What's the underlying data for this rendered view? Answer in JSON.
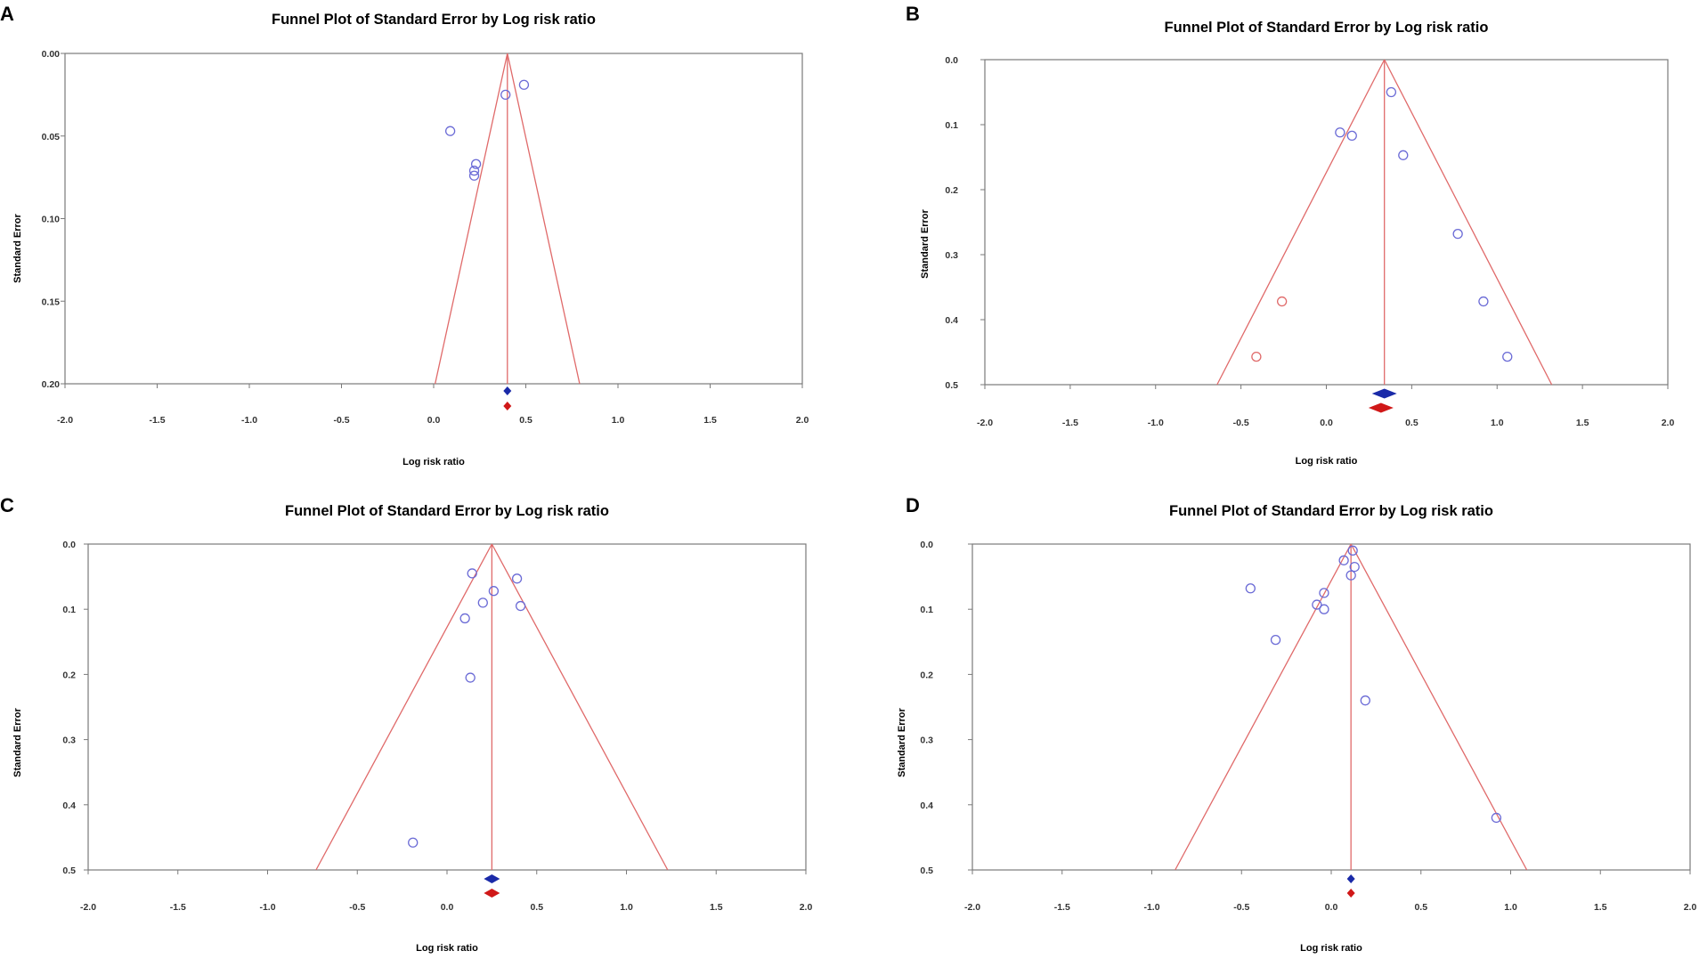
{
  "colors": {
    "funnel": "#e06a6a",
    "observed_point": "#6b6bd6",
    "imputed_point": "#e06a6a",
    "observed_diamond": "#1a2aa8",
    "imputed_diamond": "#d01818",
    "axis": "#7a7a7a"
  },
  "chart_data": [
    {
      "panel": "A",
      "type": "scatter",
      "title": "Funnel Plot of Standard Error by Log risk ratio",
      "xlabel": "Log risk ratio",
      "ylabel": "Standard Error",
      "xlim": [
        -2.0,
        2.0
      ],
      "ylim": [
        0.0,
        0.2
      ],
      "y_inverted": true,
      "xticks": [
        "-2.0",
        "-1.5",
        "-1.0",
        "-0.5",
        "0.0",
        "0.5",
        "1.0",
        "1.5",
        "2.0"
      ],
      "yticks": [
        "0.00",
        "0.05",
        "0.10",
        "0.15",
        "0.20"
      ],
      "ytick_values": [
        0.0,
        0.05,
        0.1,
        0.15,
        0.2
      ],
      "pooled_estimate": 0.4,
      "imputed_estimate": 0.4,
      "observed_points": [
        [
          0.49,
          0.019
        ],
        [
          0.39,
          0.025
        ],
        [
          0.09,
          0.047
        ],
        [
          0.23,
          0.067
        ],
        [
          0.22,
          0.071
        ],
        [
          0.22,
          0.074
        ]
      ],
      "imputed_points": []
    },
    {
      "panel": "B",
      "type": "scatter",
      "title": "Funnel Plot of Standard Error by Log risk ratio",
      "xlabel": "Log risk ratio",
      "ylabel": "Standard Error",
      "xlim": [
        -2.0,
        2.0
      ],
      "ylim": [
        0.0,
        0.5
      ],
      "y_inverted": true,
      "xticks": [
        "-2.0",
        "-1.5",
        "-1.0",
        "-0.5",
        "0.0",
        "0.5",
        "1.0",
        "1.5",
        "2.0"
      ],
      "yticks": [
        "0.0",
        "0.1",
        "0.2",
        "0.3",
        "0.4",
        "0.5"
      ],
      "ytick_values": [
        0.0,
        0.1,
        0.2,
        0.3,
        0.4,
        0.5
      ],
      "pooled_estimate": 0.34,
      "imputed_estimate": 0.32,
      "observed_points": [
        [
          0.38,
          0.05
        ],
        [
          0.08,
          0.112
        ],
        [
          0.15,
          0.117
        ],
        [
          0.45,
          0.147
        ],
        [
          0.77,
          0.268
        ],
        [
          0.92,
          0.372
        ],
        [
          1.06,
          0.457
        ]
      ],
      "imputed_points": [
        [
          -0.26,
          0.372
        ],
        [
          -0.41,
          0.457
        ]
      ]
    },
    {
      "panel": "C",
      "type": "scatter",
      "title": "Funnel Plot of Standard Error by Log risk ratio",
      "xlabel": "Log risk ratio",
      "ylabel": "Standard Error",
      "xlim": [
        -2.0,
        2.0
      ],
      "ylim": [
        0.0,
        0.5
      ],
      "y_inverted": true,
      "xticks": [
        "-2.0",
        "-1.5",
        "-1.0",
        "-0.5",
        "0.0",
        "0.5",
        "1.0",
        "1.5",
        "2.0"
      ],
      "yticks": [
        "0.0",
        "0.1",
        "0.2",
        "0.3",
        "0.4",
        "0.5"
      ],
      "ytick_values": [
        0.0,
        0.1,
        0.2,
        0.3,
        0.4,
        0.5
      ],
      "pooled_estimate": 0.25,
      "imputed_estimate": 0.25,
      "observed_points": [
        [
          0.14,
          0.045
        ],
        [
          0.39,
          0.053
        ],
        [
          0.26,
          0.072
        ],
        [
          0.2,
          0.09
        ],
        [
          0.41,
          0.095
        ],
        [
          0.1,
          0.114
        ],
        [
          0.13,
          0.205
        ],
        [
          -0.19,
          0.458
        ]
      ],
      "imputed_points": []
    },
    {
      "panel": "D",
      "type": "scatter",
      "title": "Funnel Plot of Standard Error by Log risk ratio",
      "xlabel": "Log risk ratio",
      "ylabel": "Standard Error",
      "xlim": [
        -2.0,
        2.0
      ],
      "ylim": [
        0.0,
        0.5
      ],
      "y_inverted": true,
      "xticks": [
        "-2.0",
        "-1.5",
        "-1.0",
        "-0.5",
        "0.0",
        "0.5",
        "1.0",
        "1.5",
        "2.0"
      ],
      "yticks": [
        "0.0",
        "0.1",
        "0.2",
        "0.3",
        "0.4",
        "0.5"
      ],
      "ytick_values": [
        0.0,
        0.1,
        0.2,
        0.3,
        0.4,
        0.5
      ],
      "pooled_estimate": 0.11,
      "imputed_estimate": 0.11,
      "observed_points": [
        [
          0.12,
          0.01
        ],
        [
          0.07,
          0.025
        ],
        [
          0.13,
          0.035
        ],
        [
          0.11,
          0.048
        ],
        [
          -0.45,
          0.068
        ],
        [
          -0.04,
          0.075
        ],
        [
          -0.08,
          0.093
        ],
        [
          -0.04,
          0.1
        ],
        [
          -0.31,
          0.147
        ],
        [
          0.19,
          0.24
        ],
        [
          0.92,
          0.42
        ]
      ],
      "imputed_points": []
    }
  ]
}
